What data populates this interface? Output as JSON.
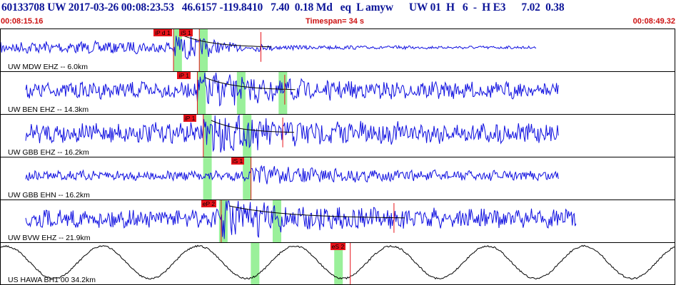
{
  "header": {
    "title": "60133708 UW 2017-03-26 00:08:23.53   46.6157 -119.8410   7.40  0.18 Md   eq  L amyw      UW 01  H   6  -  H E3      7.02  0.38",
    "start_time": "00:08:15.16",
    "timespan": "Timespan=  34 s",
    "end_time": "00:08:49.32"
  },
  "colors": {
    "title": "#0d1599",
    "row2": "#cc1111",
    "trace": "#1010e0",
    "trace_long_period": "#000000",
    "pick": "#e8141b",
    "window": "#9af09a",
    "coda_fit": "#c01010"
  },
  "channels": [
    {
      "label": "UW MDW EHZ -- 6.0km",
      "picks": [
        {
          "label": "iP d 1",
          "t": 8.7
        },
        {
          "label": "iS 1",
          "t": 10.0
        }
      ],
      "coda_t": 13.1,
      "trace_end": 27.0,
      "windows": [
        8.8,
        10.1
      ],
      "amp": 0.55,
      "style": "short"
    },
    {
      "label": "UW BEN EHZ -- 14.3km",
      "picks": [
        {
          "label": "iP 1",
          "t": 9.9
        }
      ],
      "coda_t": 14.3,
      "trace_end": 28.1,
      "windows": [
        10.0,
        12.0,
        14.1
      ],
      "amp": 0.75,
      "style": "short"
    },
    {
      "label": "UW GBB EHZ -- 16.2km",
      "picks": [
        {
          "label": "iP 1",
          "t": 10.2
        }
      ],
      "coda_t": 14.2,
      "trace_end": 28.1,
      "windows": [
        10.3,
        12.3
      ],
      "amp": 0.9,
      "style": "short"
    },
    {
      "label": "UW GBB EHN -- 16.2km",
      "picks": [
        {
          "label": "iS 1",
          "t": 12.6
        }
      ],
      "coda_t": null,
      "trace_end": 28.1,
      "windows": [
        10.3,
        12.3
      ],
      "amp": 0.45,
      "style": "short"
    },
    {
      "label": "UW BVW EHZ -- 21.9km",
      "picks": [
        {
          "label": "eP 2",
          "t": 11.1
        }
      ],
      "coda_t": 19.8,
      "trace_end": 29.0,
      "windows": [
        11.1,
        13.8
      ],
      "amp": 0.85,
      "style": "short"
    },
    {
      "label": "US HAWA BH1 00 34.2km",
      "picks": [
        {
          "label": "eS 2",
          "t": 17.6
        }
      ],
      "coda_t": null,
      "trace_end": 34.0,
      "windows": [
        12.7,
        16.9
      ],
      "amp": 0.85,
      "style": "long"
    }
  ],
  "chart_data": {
    "type": "line",
    "title": "60133708 UW 2017-03-26 00:08:23.53   46.6157 -119.8410   7.40  0.18 Md   eq  L amyw      UW 01  H   6  -  H E3      7.02  0.38",
    "xlabel": "",
    "ylabel": "",
    "xlim": [
      0,
      34
    ],
    "x_start_label": "00:08:15.16",
    "x_end_label": "00:08:49.32",
    "series": [
      {
        "name": "UW MDW EHZ -- 6.0km"
      },
      {
        "name": "UW BEN EHZ -- 14.3km"
      },
      {
        "name": "UW GBB EHZ -- 16.2km"
      },
      {
        "name": "UW GBB EHN -- 16.2km"
      },
      {
        "name": "UW BVW EHZ -- 21.9km"
      },
      {
        "name": "US HAWA BH1 00 34.2km"
      }
    ]
  }
}
